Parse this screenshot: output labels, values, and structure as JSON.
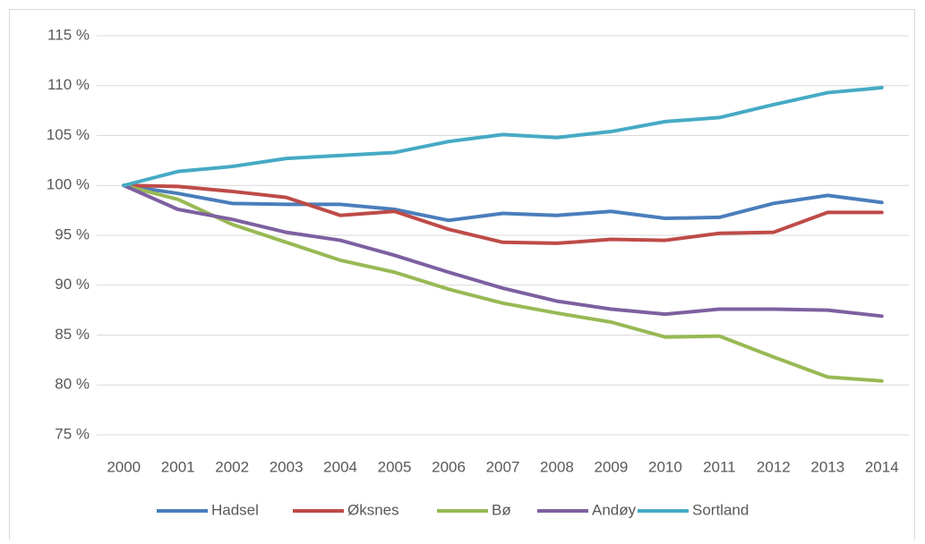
{
  "chart_data": {
    "type": "line",
    "categories": [
      "2000",
      "2001",
      "2002",
      "2003",
      "2004",
      "2005",
      "2006",
      "2007",
      "2008",
      "2009",
      "2010",
      "2011",
      "2012",
      "2013",
      "2014"
    ],
    "series": [
      {
        "name": "Hadsel",
        "color": "#4a7ebb",
        "values": [
          100,
          99.2,
          98.2,
          98.1,
          98.1,
          97.6,
          96.5,
          97.2,
          97.0,
          97.4,
          96.7,
          96.8,
          98.2,
          99.0,
          98.3
        ]
      },
      {
        "name": "Øksnes",
        "color": "#be4b48",
        "values": [
          100,
          99.9,
          99.4,
          98.8,
          97.0,
          97.4,
          95.6,
          94.3,
          94.2,
          94.6,
          94.5,
          95.2,
          95.3,
          97.3,
          97.3
        ]
      },
      {
        "name": "Bø",
        "color": "#98b954",
        "values": [
          100,
          98.6,
          96.1,
          94.3,
          92.5,
          91.3,
          89.6,
          88.2,
          87.2,
          86.3,
          84.8,
          84.9,
          82.8,
          80.8,
          80.4
        ]
      },
      {
        "name": "Andøy",
        "color": "#7d60a0",
        "values": [
          100,
          97.6,
          96.6,
          95.3,
          94.5,
          93.0,
          91.3,
          89.7,
          88.4,
          87.6,
          87.1,
          87.6,
          87.6,
          87.5,
          86.9
        ]
      },
      {
        "name": "Sortland",
        "color": "#46aac5",
        "values": [
          100,
          101.4,
          101.9,
          102.7,
          103.0,
          103.3,
          104.4,
          105.1,
          104.8,
          105.4,
          106.4,
          106.8,
          108.1,
          109.3,
          109.8
        ]
      }
    ],
    "ylim": [
      75,
      115
    ],
    "yticks": [
      {
        "value": 75,
        "label": "75 %"
      },
      {
        "value": 80,
        "label": "80 %"
      },
      {
        "value": 85,
        "label": "85 %"
      },
      {
        "value": 90,
        "label": "90 %"
      },
      {
        "value": 95,
        "label": "95 %"
      },
      {
        "value": 100,
        "label": "100 %"
      },
      {
        "value": 105,
        "label": "105 %"
      },
      {
        "value": 110,
        "label": "110 %"
      },
      {
        "value": 115,
        "label": "115 %"
      }
    ],
    "grid": true,
    "legend": "bottom"
  }
}
